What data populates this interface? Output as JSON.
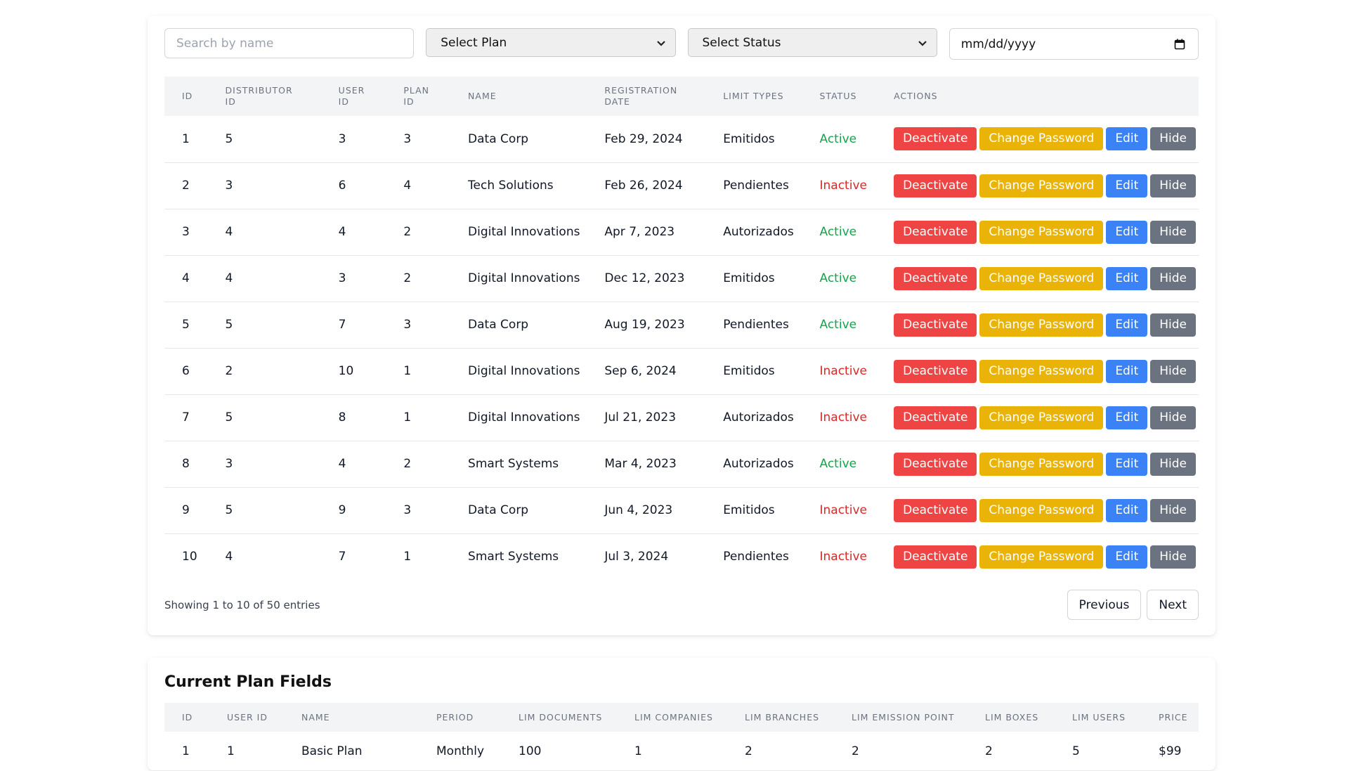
{
  "filters": {
    "search_placeholder": "Search by name",
    "plan_select": "Select Plan",
    "status_select": "Select Status",
    "date_placeholder": "mm/dd/yyyy"
  },
  "colors": {
    "active": "#16a34a",
    "inactive": "#dc2626",
    "deactivate": "#ef4444",
    "change_password": "#eab308",
    "edit": "#3b82f6",
    "hide": "#6b7280"
  },
  "icons": {
    "select_arrow": "chevron-down-icon",
    "date": "calendar-icon"
  },
  "table": {
    "headers": [
      "ID",
      "DISTRIBUTOR ID",
      "USER ID",
      "PLAN ID",
      "NAME",
      "REGISTRATION DATE",
      "LIMIT TYPES",
      "STATUS",
      "ACTIONS"
    ],
    "actions": [
      "Deactivate",
      "Change Password",
      "Edit",
      "Hide"
    ],
    "rows": [
      {
        "id": "1",
        "distributor_id": "5",
        "user_id": "3",
        "plan_id": "3",
        "name": "Data Corp",
        "date": "Feb 29, 2024",
        "limit": "Emitidos",
        "status": "Active"
      },
      {
        "id": "2",
        "distributor_id": "3",
        "user_id": "6",
        "plan_id": "4",
        "name": "Tech Solutions",
        "date": "Feb 26, 2024",
        "limit": "Pendientes",
        "status": "Inactive"
      },
      {
        "id": "3",
        "distributor_id": "4",
        "user_id": "4",
        "plan_id": "2",
        "name": "Digital Innovations",
        "date": "Apr 7, 2023",
        "limit": "Autorizados",
        "status": "Active"
      },
      {
        "id": "4",
        "distributor_id": "4",
        "user_id": "3",
        "plan_id": "2",
        "name": "Digital Innovations",
        "date": "Dec 12, 2023",
        "limit": "Emitidos",
        "status": "Active"
      },
      {
        "id": "5",
        "distributor_id": "5",
        "user_id": "7",
        "plan_id": "3",
        "name": "Data Corp",
        "date": "Aug 19, 2023",
        "limit": "Pendientes",
        "status": "Active"
      },
      {
        "id": "6",
        "distributor_id": "2",
        "user_id": "10",
        "plan_id": "1",
        "name": "Digital Innovations",
        "date": "Sep 6, 2024",
        "limit": "Emitidos",
        "status": "Inactive"
      },
      {
        "id": "7",
        "distributor_id": "5",
        "user_id": "8",
        "plan_id": "1",
        "name": "Digital Innovations",
        "date": "Jul 21, 2023",
        "limit": "Autorizados",
        "status": "Inactive"
      },
      {
        "id": "8",
        "distributor_id": "3",
        "user_id": "4",
        "plan_id": "2",
        "name": "Smart Systems",
        "date": "Mar 4, 2023",
        "limit": "Autorizados",
        "status": "Active"
      },
      {
        "id": "9",
        "distributor_id": "5",
        "user_id": "9",
        "plan_id": "3",
        "name": "Data Corp",
        "date": "Jun 4, 2023",
        "limit": "Emitidos",
        "status": "Inactive"
      },
      {
        "id": "10",
        "distributor_id": "4",
        "user_id": "7",
        "plan_id": "1",
        "name": "Smart Systems",
        "date": "Jul 3, 2024",
        "limit": "Pendientes",
        "status": "Inactive"
      }
    ]
  },
  "pagination": {
    "showing": "Showing 1 to 10 of 50 entries",
    "previous": "Previous",
    "next": "Next"
  },
  "plan_fields": {
    "title": "Current Plan Fields",
    "headers": [
      "ID",
      "USER ID",
      "NAME",
      "PERIOD",
      "LIM DOCUMENTS",
      "LIM COMPANIES",
      "LIM BRANCHES",
      "LIM EMISSION POINT",
      "LIM BOXES",
      "LIM USERS",
      "PRICE"
    ],
    "rows": [
      [
        "1",
        "1",
        "Basic Plan",
        "Monthly",
        "100",
        "1",
        "2",
        "2",
        "2",
        "5",
        "$99"
      ]
    ]
  }
}
